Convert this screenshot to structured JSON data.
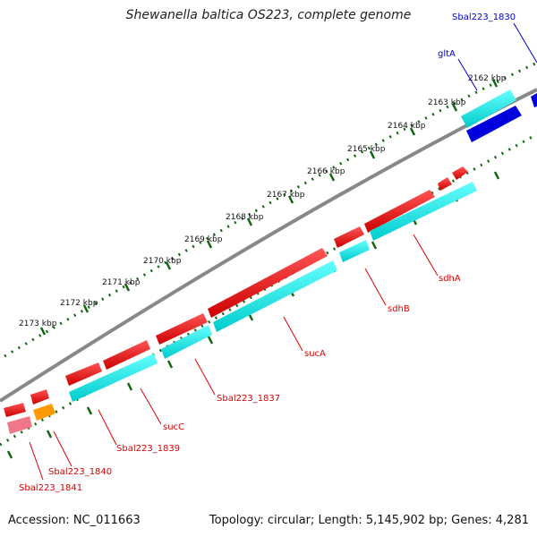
{
  "title": "Shewanella baltica OS223, complete genome",
  "footer": {
    "accession": "Accession: NC_011663",
    "summary": "Topology: circular; Length: 5,145,902 bp; Genes: 4,281"
  },
  "colors": {
    "forward_cds": "#ee0000",
    "reverse_cds": "#00dddd",
    "highlight_blue": "#0000dd",
    "label_red": "#dd0000",
    "label_blue": "#0000cc",
    "backbone": "#888888",
    "tick_green": "#116611",
    "orange": "#ff9900",
    "pink": "#ee7788"
  },
  "ticks": [
    {
      "label": "2162 kbp"
    },
    {
      "label": "2163 kbp"
    },
    {
      "label": "2164 kbp"
    },
    {
      "label": "2165 kbp"
    },
    {
      "label": "2166 kbp"
    },
    {
      "label": "2167 kbp"
    },
    {
      "label": "2168 kbp"
    },
    {
      "label": "2169 kbp"
    },
    {
      "label": "2170 kbp"
    },
    {
      "label": "2171 kbp"
    },
    {
      "label": "2172 kbp"
    },
    {
      "label": "2173 kbp"
    }
  ],
  "gene_labels": [
    {
      "name": "Sbal223_1830",
      "color": "blue"
    },
    {
      "name": "gltA",
      "color": "blue"
    },
    {
      "name": "sdhA",
      "color": "red"
    },
    {
      "name": "sdhB",
      "color": "red"
    },
    {
      "name": "sucA",
      "color": "red"
    },
    {
      "name": "Sbal223_1837",
      "color": "red"
    },
    {
      "name": "sucC",
      "color": "red"
    },
    {
      "name": "Sbal223_1839",
      "color": "red"
    },
    {
      "name": "Sbal223_1840",
      "color": "red"
    },
    {
      "name": "Sbal223_1841",
      "color": "red"
    }
  ]
}
